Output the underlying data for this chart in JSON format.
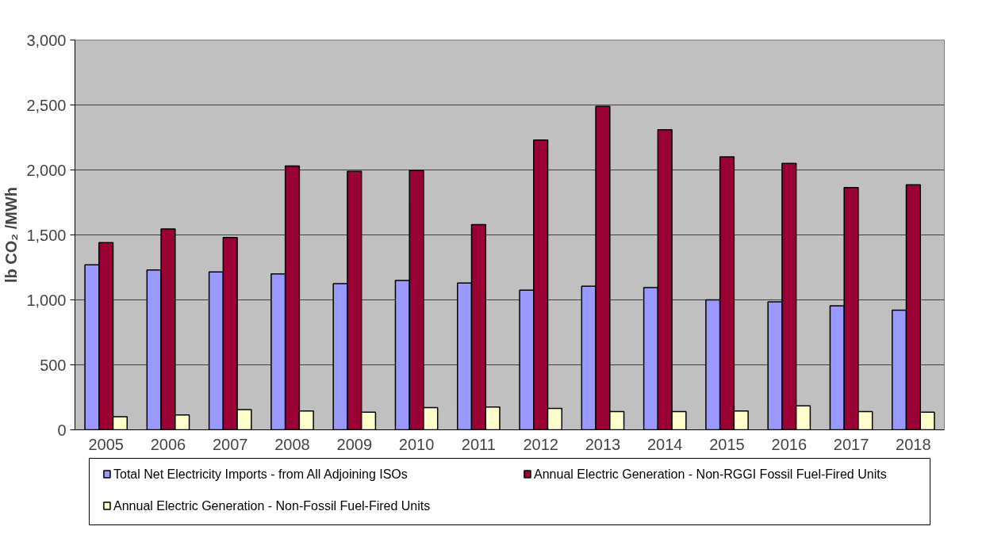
{
  "chart_data": {
    "type": "bar",
    "ylabel": "lb CO₂ /MWh",
    "categories": [
      "2005",
      "2006",
      "2007",
      "2008",
      "2009",
      "2010",
      "2011",
      "2012",
      "2013",
      "2014",
      "2015",
      "2016",
      "2017",
      "2018"
    ],
    "series": [
      {
        "name": "Total Net Electricity Imports - from All Adjoining ISOs",
        "color": "#9999ff",
        "values": [
          1270,
          1230,
          1215,
          1200,
          1125,
          1150,
          1130,
          1075,
          1105,
          1095,
          1000,
          985,
          955,
          920
        ]
      },
      {
        "name": "Annual Electric Generation - Non-RGGI Fossil Fuel-Fired Units",
        "color": "#990033",
        "values": [
          1440,
          1545,
          1480,
          2030,
          1990,
          1995,
          1580,
          2230,
          2490,
          2310,
          2100,
          2050,
          1865,
          1885
        ]
      },
      {
        "name": "Annual Electric Generation - Non-Fossil Fuel-Fired Units",
        "color": "#ffffcc",
        "values": [
          100,
          115,
          155,
          145,
          135,
          170,
          175,
          165,
          140,
          140,
          145,
          185,
          140,
          135
        ]
      }
    ],
    "ylim": [
      0,
      3000
    ],
    "yticks": [
      {
        "value": 0,
        "label": "0"
      },
      {
        "value": 500,
        "label": "500"
      },
      {
        "value": 1000,
        "label": "1,000"
      },
      {
        "value": 1500,
        "label": "1,500"
      },
      {
        "value": 2000,
        "label": "2,000"
      },
      {
        "value": 2500,
        "label": "2,500"
      },
      {
        "value": 3000,
        "label": "3,000"
      }
    ],
    "grid": "y",
    "legend": "bottom"
  }
}
